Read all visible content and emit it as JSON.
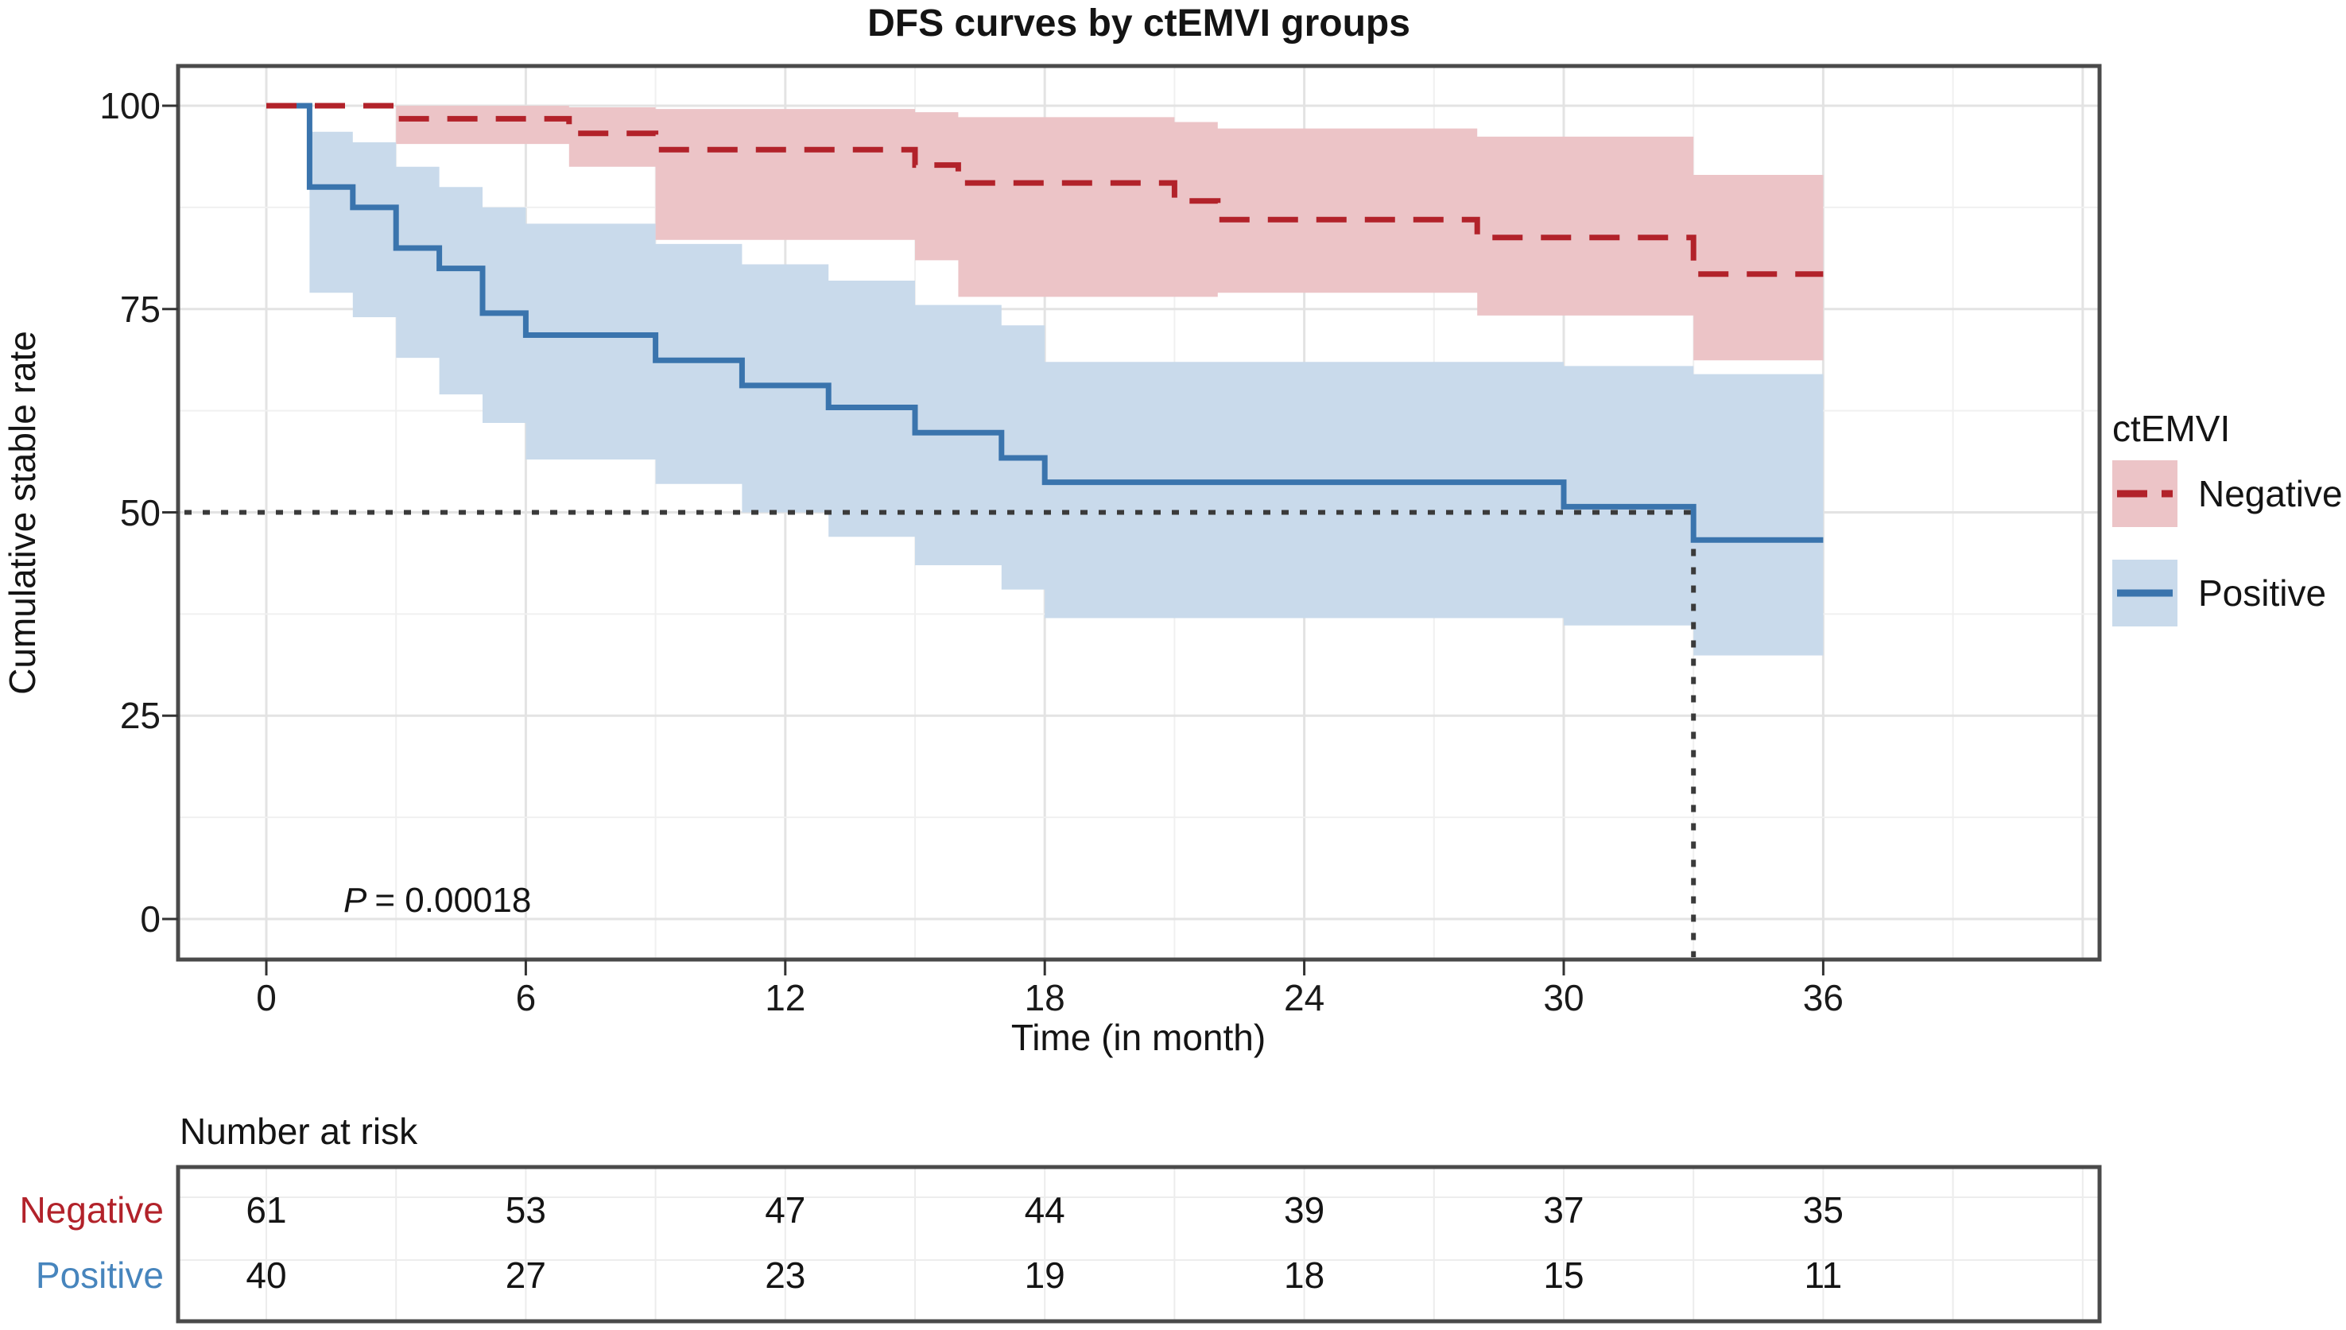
{
  "chart_data": {
    "type": "line",
    "subtype": "kaplan_meier_step_curves_with_ci_bands",
    "title": "DFS curves by ctEMVI groups",
    "xlabel": "Time (in month)",
    "ylabel": "Cumulative stable rate",
    "xlim": [
      0,
      42.4
    ],
    "ylim": [
      0,
      100
    ],
    "xticks": [
      0,
      6,
      12,
      18,
      24,
      30,
      36
    ],
    "yticks": [
      100,
      75,
      50,
      25,
      0
    ],
    "grid": "major and minor, light gray, minor every 3 months / 12.5 units",
    "legend": {
      "title": "ctEMVI",
      "position": "right",
      "items": [
        {
          "label": "Negative",
          "line_style": "dashed",
          "line_color": "#b2222a",
          "band_color": "#ecc4c7"
        },
        {
          "label": "Positive",
          "line_style": "solid",
          "line_color": "#3a74ad",
          "band_color": "#c9daeb"
        }
      ]
    },
    "annotations": {
      "p_label_prefix": "P",
      "p_label_rest": "= 0.00018"
    },
    "reference_lines": {
      "y": 50,
      "x": 33,
      "style": "dotted black"
    },
    "series": [
      {
        "name": "Negative",
        "line_color": "#b2222a",
        "band_color": "#ecc4c7",
        "dashed": true,
        "steps": [
          [
            0,
            100
          ],
          [
            3,
            98.4
          ],
          [
            7,
            96.6
          ],
          [
            9,
            94.6
          ],
          [
            15,
            92.7
          ],
          [
            16,
            90.5
          ],
          [
            21,
            88.3
          ],
          [
            22,
            86
          ],
          [
            28,
            83.8
          ],
          [
            33,
            79.3
          ]
        ],
        "end_time": 36,
        "ci": [
          [
            3,
            95.3,
            100
          ],
          [
            7,
            92.5,
            99.8
          ],
          [
            9,
            83.5,
            99.6
          ],
          [
            15,
            81,
            99.2
          ],
          [
            16,
            76.5,
            98.6
          ],
          [
            21,
            76.5,
            98
          ],
          [
            22,
            77,
            97.2
          ],
          [
            28,
            74.2,
            96.2
          ],
          [
            33,
            68.7,
            91.5
          ]
        ],
        "ci_end": 36
      },
      {
        "name": "Positive",
        "line_color": "#3a74ad",
        "band_color": "#c9daeb",
        "dashed": false,
        "steps": [
          [
            0,
            100
          ],
          [
            1,
            90
          ],
          [
            2,
            87.5
          ],
          [
            3,
            82.5
          ],
          [
            4,
            80
          ],
          [
            5,
            74.5
          ],
          [
            6,
            71.8
          ],
          [
            9,
            68.7
          ],
          [
            11,
            65.6
          ],
          [
            13,
            62.9
          ],
          [
            15,
            59.8
          ],
          [
            17,
            56.7
          ],
          [
            18,
            53.7
          ],
          [
            30,
            50.7
          ],
          [
            33,
            46.6
          ]
        ],
        "end_time": 36,
        "ci": [
          [
            1,
            77,
            96.8
          ],
          [
            2,
            74,
            95.5
          ],
          [
            3,
            69,
            92.5
          ],
          [
            4,
            64.5,
            90
          ],
          [
            5,
            61,
            87.5
          ],
          [
            6,
            56.5,
            85.5
          ],
          [
            9,
            53.5,
            83
          ],
          [
            11,
            50,
            80.5
          ],
          [
            13,
            47,
            78.5
          ],
          [
            15,
            43.5,
            75.5
          ],
          [
            17,
            40.5,
            73
          ],
          [
            18,
            37,
            68.5
          ],
          [
            30,
            36.1,
            68
          ],
          [
            33,
            32.4,
            67
          ]
        ],
        "ci_end": 36
      }
    ],
    "risk_table": {
      "title": "Number at risk",
      "times": [
        0,
        6,
        12,
        18,
        24,
        30,
        36
      ],
      "rows": [
        {
          "label": "Negative",
          "color": "#b2222a",
          "values": [
            61,
            53,
            47,
            44,
            39,
            37,
            35
          ]
        },
        {
          "label": "Positive",
          "color": "#4785bd",
          "values": [
            40,
            27,
            23,
            19,
            18,
            15,
            11
          ]
        }
      ]
    },
    "colors": {
      "negative_line": "#b2222a",
      "negative_band": "#ecc4c7",
      "positive_line": "#3a74ad",
      "positive_band": "#c9daeb",
      "grid_major": "#e3e3e3",
      "grid_minor": "#f0f0f0",
      "panel_border": "#4a4a4a",
      "reference_line": "#3a3a3a",
      "tick": "#333333",
      "text": "#141414"
    }
  }
}
